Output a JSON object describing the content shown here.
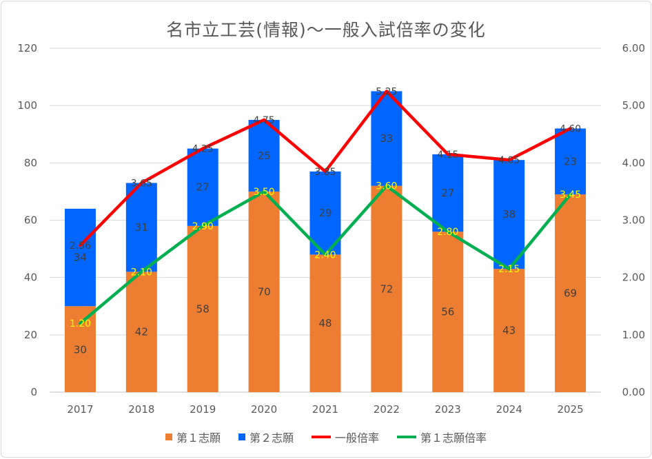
{
  "chart_data": {
    "type": "bar",
    "title": "名市立工芸(情報)～一般入試倍率の変化",
    "categories": [
      "2017",
      "2018",
      "2019",
      "2020",
      "2021",
      "2022",
      "2023",
      "2024",
      "2025"
    ],
    "series": [
      {
        "name": "第１志願",
        "kind": "stacked-bar",
        "axis": "left",
        "color": "#ed7d31",
        "values": [
          30,
          42,
          58,
          70,
          48,
          72,
          56,
          43,
          69
        ]
      },
      {
        "name": "第２志願",
        "kind": "stacked-bar",
        "axis": "left",
        "color": "#0066ff",
        "values": [
          34,
          31,
          27,
          25,
          29,
          33,
          27,
          38,
          23
        ]
      },
      {
        "name": "一般倍率",
        "kind": "line",
        "axis": "right",
        "color": "#ff0000",
        "values": [
          2.56,
          3.65,
          4.25,
          4.75,
          3.85,
          5.25,
          4.15,
          4.05,
          4.6
        ],
        "labels": [
          "2.56",
          "3.65",
          "4.25",
          "4.75",
          "3.85",
          "5.25",
          "4.15",
          "4.05",
          "4.60"
        ]
      },
      {
        "name": "第１志願倍率",
        "kind": "line",
        "axis": "right",
        "color": "#00b050",
        "values": [
          1.2,
          2.1,
          2.9,
          3.5,
          2.4,
          3.6,
          2.8,
          2.15,
          3.45
        ],
        "labels": [
          "1.20",
          "2.10",
          "2.90",
          "3.50",
          "2.40",
          "3.60",
          "2.80",
          "2.15",
          "3.45"
        ]
      }
    ],
    "y_left": {
      "min": 0,
      "max": 120,
      "ticks": [
        "0",
        "20",
        "40",
        "60",
        "80",
        "100",
        "120"
      ]
    },
    "y_right": {
      "min": 0,
      "max": 6,
      "ticks": [
        "0.00",
        "1.00",
        "2.00",
        "3.00",
        "4.00",
        "5.00",
        "6.00"
      ]
    },
    "grid": true,
    "legend_position": "bottom"
  }
}
